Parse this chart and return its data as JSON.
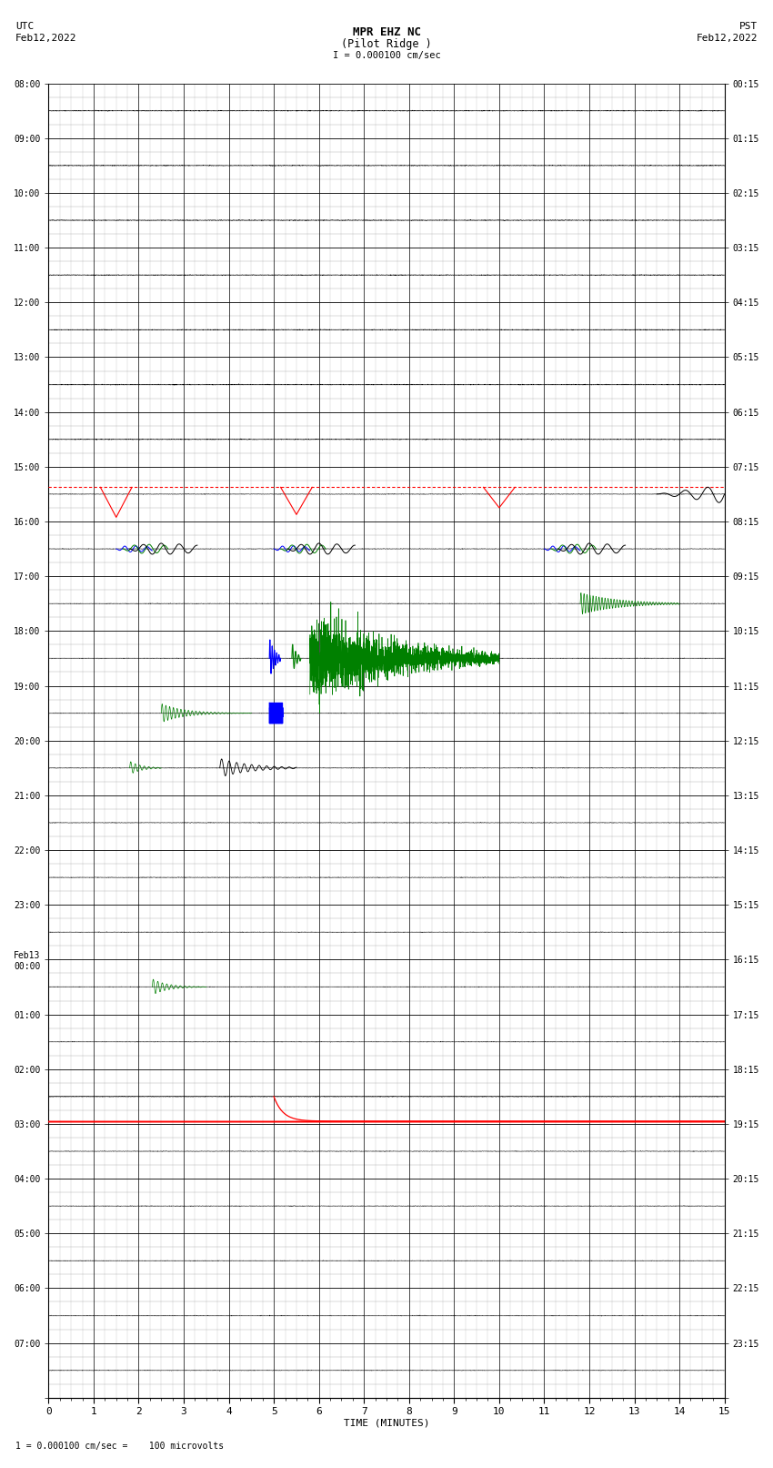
{
  "title_line1": "MPR EHZ NC",
  "title_line2": "(Pilot Ridge )",
  "scale_label": "I = 0.000100 cm/sec",
  "left_header_line1": "UTC",
  "left_header_line2": "Feb12,2022",
  "right_header_line1": "PST",
  "right_header_line2": "Feb12,2022",
  "bottom_note": "1 = 0.000100 cm/sec =    100 microvolts",
  "xlabel": "TIME (MINUTES)",
  "left_yticks": [
    "08:00",
    "09:00",
    "10:00",
    "11:00",
    "12:00",
    "13:00",
    "14:00",
    "15:00",
    "16:00",
    "17:00",
    "18:00",
    "19:00",
    "20:00",
    "21:00",
    "22:00",
    "23:00",
    "Feb13\n00:00",
    "01:00",
    "02:00",
    "03:00",
    "04:00",
    "05:00",
    "06:00",
    "07:00"
  ],
  "right_yticks": [
    "00:15",
    "01:15",
    "02:15",
    "03:15",
    "04:15",
    "05:15",
    "06:15",
    "07:15",
    "08:15",
    "09:15",
    "10:15",
    "11:15",
    "12:15",
    "13:15",
    "14:15",
    "15:15",
    "16:15",
    "17:15",
    "18:15",
    "19:15",
    "20:15",
    "21:15",
    "22:15",
    "23:15"
  ],
  "num_rows": 24,
  "subrows": 4,
  "xlim": [
    0,
    15
  ],
  "xticks": [
    0,
    1,
    2,
    3,
    4,
    5,
    6,
    7,
    8,
    9,
    10,
    11,
    12,
    13,
    14,
    15
  ],
  "bg_color": "white",
  "major_grid_color": "#000000",
  "minor_grid_color": "#aaaaaa",
  "trace_amplitude": 0.08
}
